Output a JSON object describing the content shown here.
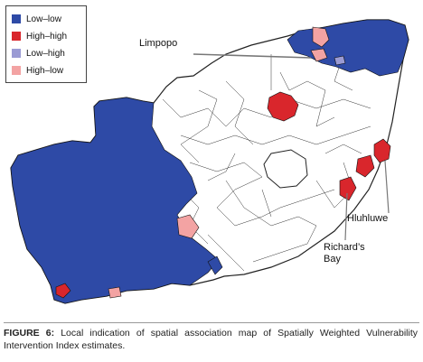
{
  "legend": {
    "items": [
      {
        "label": "Low–low",
        "color": "#2e4aa6"
      },
      {
        "label": "High–high",
        "color": "#d9262c"
      },
      {
        "label": "Low–high",
        "color": "#9b9bd4"
      },
      {
        "label": "High–low",
        "color": "#f3a3a3"
      }
    ]
  },
  "labels": {
    "limpopo": "Limpopo",
    "hluhluwe": "Hluhluwe",
    "richards_bay": "Richard’s\nBay"
  },
  "caption": {
    "figure_label": "FIGURE 6:",
    "text": "Local indication of spatial association map of Spatially Weighted Vulnerability Intervention Index estimates."
  },
  "colors": {
    "not_significant_fill": "#ffffff",
    "boundary": "#222222"
  }
}
